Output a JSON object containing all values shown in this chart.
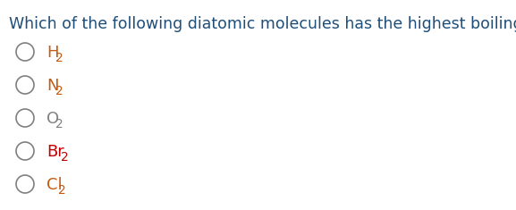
{
  "title": "Which of the following diatomic molecules has the highest boiling point?",
  "title_color": "#1f4e79",
  "title_fontsize": 12.5,
  "options": [
    {
      "main": "H",
      "sub": "2",
      "color": "#c55a11"
    },
    {
      "main": "N",
      "sub": "2",
      "color": "#c55a11"
    },
    {
      "main": "O",
      "sub": "2",
      "color": "#808080"
    },
    {
      "main": "Br",
      "sub": "2",
      "color": "#c00000"
    },
    {
      "main": "Cl",
      "sub": "2",
      "color": "#c55a11"
    }
  ],
  "background_color": "#ffffff",
  "circle_color": "#808080",
  "circle_linewidth": 1.2,
  "option_fontsize": 13.0,
  "sub_fontsize": 10.0
}
